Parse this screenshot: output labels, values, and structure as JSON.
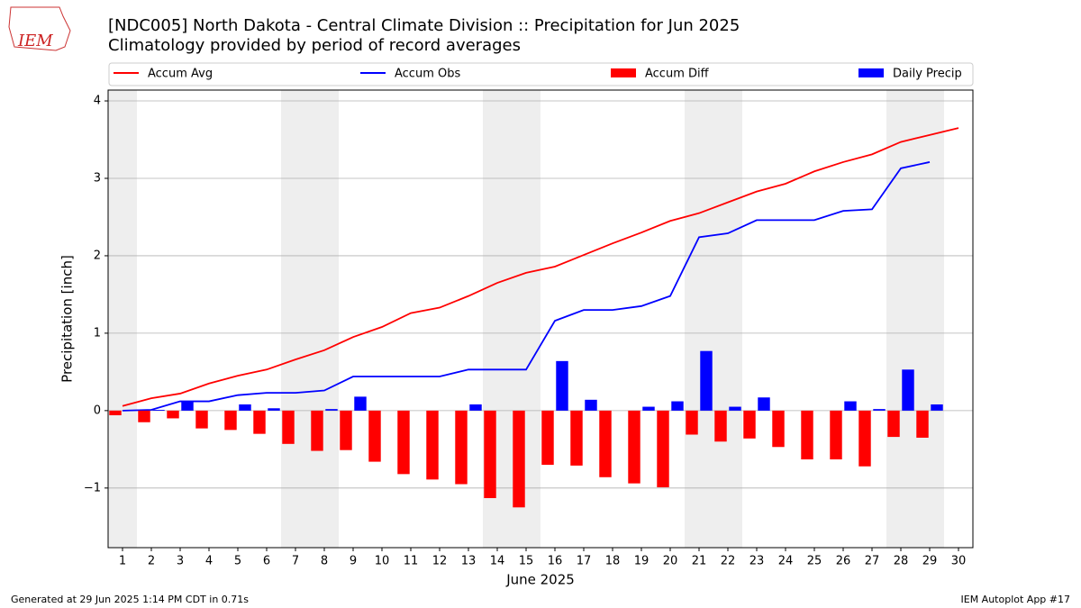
{
  "logo_text": "IEM",
  "chart_data": {
    "type": "bar",
    "title": "[NDC005] North Dakota - Central Climate Division :: Precipitation for Jun 2025",
    "subtitle": "Climatology provided by period of record averages",
    "y_label": "Precipitation [inch]",
    "x_label": "June 2025",
    "x": [
      1,
      2,
      3,
      4,
      5,
      6,
      7,
      8,
      9,
      10,
      11,
      12,
      13,
      14,
      15,
      16,
      17,
      18,
      19,
      20,
      21,
      22,
      23,
      24,
      25,
      26,
      27,
      28,
      29,
      30
    ],
    "xlim": [
      0.5,
      30.5
    ],
    "xticks": [
      1,
      2,
      3,
      4,
      5,
      6,
      7,
      8,
      9,
      10,
      11,
      12,
      13,
      14,
      15,
      16,
      17,
      18,
      19,
      20,
      21,
      22,
      23,
      24,
      25,
      26,
      27,
      28,
      29,
      30
    ],
    "ylim": [
      -1.77,
      4.14
    ],
    "yticks": [
      {
        "value": -1,
        "label": "−1"
      },
      0,
      1,
      2,
      3,
      4
    ],
    "grid": true,
    "shaded_days": [
      1,
      7,
      8,
      14,
      15,
      21,
      22,
      28,
      29
    ],
    "series": [
      {
        "name": "Accum Avg",
        "type": "line",
        "color": "#ff0000",
        "values": [
          0.06,
          0.16,
          0.22,
          0.35,
          0.45,
          0.53,
          0.66,
          0.78,
          0.95,
          1.08,
          1.26,
          1.33,
          1.48,
          1.65,
          1.78,
          1.86,
          2.01,
          2.16,
          2.3,
          2.45,
          2.55,
          2.69,
          2.83,
          2.93,
          3.09,
          3.21,
          3.31,
          3.47,
          3.56,
          3.65
        ]
      },
      {
        "name": "Accum Obs",
        "type": "line",
        "color": "#0000ff",
        "values": [
          0.0,
          0.01,
          0.12,
          0.12,
          0.2,
          0.23,
          0.23,
          0.26,
          0.44,
          0.44,
          0.44,
          0.44,
          0.53,
          0.53,
          0.53,
          1.16,
          1.3,
          1.3,
          1.35,
          1.48,
          2.24,
          2.29,
          2.46,
          2.46,
          2.46,
          2.58,
          2.6,
          3.13,
          3.21,
          null
        ]
      },
      {
        "name": "Accum Diff",
        "type": "bar",
        "color": "#ff0000",
        "values": [
          -0.06,
          -0.15,
          -0.1,
          -0.23,
          -0.25,
          -0.3,
          -0.43,
          -0.52,
          -0.51,
          -0.66,
          -0.82,
          -0.89,
          -0.95,
          -1.13,
          -1.25,
          -0.7,
          -0.71,
          -0.86,
          -0.94,
          -0.99,
          -0.31,
          -0.4,
          -0.36,
          -0.47,
          -0.63,
          -0.63,
          -0.72,
          -0.34,
          -0.35,
          null
        ]
      },
      {
        "name": "Daily Precip",
        "type": "bar",
        "color": "#0000ff",
        "values": [
          0.0,
          0.01,
          0.11,
          0.0,
          0.08,
          0.03,
          0.0,
          0.02,
          0.18,
          0.0,
          0.0,
          0.0,
          0.08,
          0.0,
          0.0,
          0.64,
          0.14,
          0.0,
          0.05,
          0.12,
          0.77,
          0.05,
          0.17,
          0.0,
          0.0,
          0.12,
          0.02,
          0.53,
          0.08,
          null
        ]
      }
    ],
    "footer_left": "Generated at 29 Jun 2025 1:14 PM CDT in 0.71s",
    "footer_right": "IEM Autoplot App #17"
  }
}
